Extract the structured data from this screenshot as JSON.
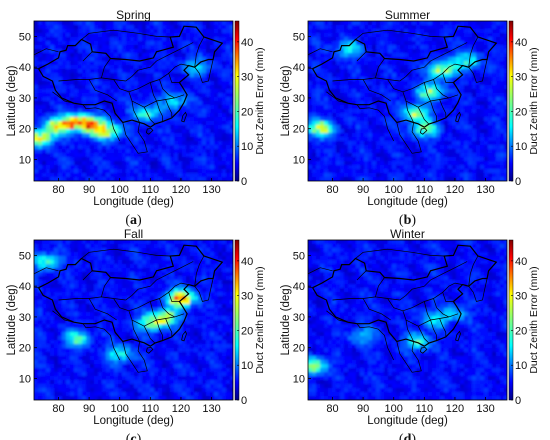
{
  "chart_data": [
    {
      "type": "heatmap",
      "title": "Spring",
      "panel_label": "a",
      "xlabel": "Longitude (deg)",
      "ylabel": "Latitude (deg)",
      "colorbar_label": "Duct Zenith Error (mm)",
      "xlim": [
        72,
        137
      ],
      "ylim": [
        3,
        55
      ],
      "clim": [
        0,
        46
      ],
      "xticks": [
        80,
        90,
        100,
        110,
        120,
        130
      ],
      "yticks": [
        10,
        20,
        30,
        40,
        50
      ],
      "cticks": [
        0,
        10,
        20,
        30,
        40
      ],
      "colormap": "jet",
      "hotspots": [
        {
          "lon": 80,
          "lat": 21,
          "value": 24
        },
        {
          "lon": 86,
          "lat": 22,
          "value": 26
        },
        {
          "lon": 91,
          "lat": 21,
          "value": 23
        },
        {
          "lon": 96,
          "lat": 19,
          "value": 20
        },
        {
          "lon": 74,
          "lat": 17,
          "value": 22
        },
        {
          "lon": 109,
          "lat": 25,
          "value": 14
        },
        {
          "lon": 118,
          "lat": 29,
          "value": 11
        },
        {
          "lon": 125,
          "lat": 40,
          "value": 10
        }
      ]
    },
    {
      "type": "heatmap",
      "title": "Summer",
      "panel_label": "b",
      "xlabel": "Longitude (deg)",
      "ylabel": "Latitude (deg)",
      "colorbar_label": "Duct Zenith Error (mm)",
      "xlim": [
        72,
        137
      ],
      "ylim": [
        3,
        55
      ],
      "clim": [
        0,
        46
      ],
      "xticks": [
        80,
        90,
        100,
        110,
        120,
        130
      ],
      "yticks": [
        10,
        20,
        30,
        40,
        50
      ],
      "cticks": [
        0,
        10,
        20,
        30,
        40
      ],
      "colormap": "jet",
      "hotspots": [
        {
          "lon": 76,
          "lat": 20,
          "value": 22
        },
        {
          "lon": 116,
          "lat": 39,
          "value": 21
        },
        {
          "lon": 112,
          "lat": 32,
          "value": 18
        },
        {
          "lon": 107,
          "lat": 25,
          "value": 19
        },
        {
          "lon": 110,
          "lat": 20,
          "value": 17
        },
        {
          "lon": 85,
          "lat": 46,
          "value": 12
        },
        {
          "lon": 124,
          "lat": 42,
          "value": 14
        }
      ]
    },
    {
      "type": "heatmap",
      "title": "Fall",
      "panel_label": "c",
      "xlabel": "Longitude (deg)",
      "ylabel": "Latitude (deg)",
      "colorbar_label": "Duct Zenith Error (mm)",
      "xlim": [
        72,
        137
      ],
      "ylim": [
        3,
        55
      ],
      "clim": [
        0,
        46
      ],
      "xticks": [
        80,
        90,
        100,
        110,
        120,
        130
      ],
      "yticks": [
        10,
        20,
        30,
        40,
        50
      ],
      "cticks": [
        0,
        10,
        20,
        30,
        40
      ],
      "colormap": "jet",
      "hotspots": [
        {
          "lon": 120,
          "lat": 36,
          "value": 32
        },
        {
          "lon": 115,
          "lat": 30,
          "value": 20
        },
        {
          "lon": 110,
          "lat": 28,
          "value": 17
        },
        {
          "lon": 76,
          "lat": 48,
          "value": 16
        },
        {
          "lon": 86,
          "lat": 23,
          "value": 14
        },
        {
          "lon": 100,
          "lat": 18,
          "value": 13
        }
      ]
    },
    {
      "type": "heatmap",
      "title": "Winter",
      "panel_label": "d",
      "xlabel": "Longitude (deg)",
      "ylabel": "Latitude (deg)",
      "colorbar_label": "Duct Zenith Error (mm)",
      "xlim": [
        72,
        137
      ],
      "ylim": [
        3,
        55
      ],
      "clim": [
        0,
        46
      ],
      "xticks": [
        80,
        90,
        100,
        110,
        120,
        130
      ],
      "yticks": [
        10,
        20,
        30,
        40,
        50
      ],
      "cticks": [
        0,
        10,
        20,
        30,
        40
      ],
      "colormap": "jet",
      "hotspots": [
        {
          "lon": 74,
          "lat": 14,
          "value": 18
        },
        {
          "lon": 108,
          "lat": 22,
          "value": 14
        },
        {
          "lon": 113,
          "lat": 29,
          "value": 11
        },
        {
          "lon": 90,
          "lat": 24,
          "value": 9
        },
        {
          "lon": 120,
          "lat": 31,
          "value": 9
        }
      ]
    }
  ]
}
